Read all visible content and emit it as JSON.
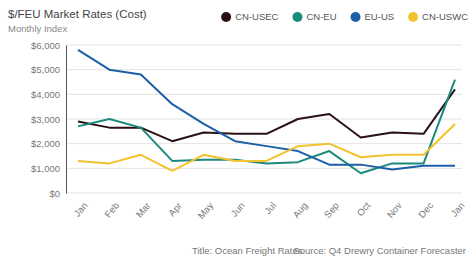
{
  "chart_data": {
    "type": "line",
    "title": "$/FEU Market Rates (Cost)",
    "subtitle": "Monthly Index",
    "annotations": [
      "Title: Ocean Freight Rates",
      "Source: Q4 Drewry Container Forecaster"
    ],
    "categories": [
      "Jan",
      "Feb",
      "Mar",
      "Apr",
      "May",
      "Jun",
      "Jul",
      "Aug",
      "Sep",
      "Oct",
      "Nov",
      "Dec",
      "Jan"
    ],
    "series": [
      {
        "name": "CN-USEC",
        "color": "#2a1114",
        "values": [
          2900,
          2650,
          2650,
          2100,
          2450,
          2400,
          2400,
          3000,
          3200,
          2250,
          2450,
          2400,
          4200
        ]
      },
      {
        "name": "CN-EU",
        "color": "#1b8a7c",
        "values": [
          2700,
          3000,
          2650,
          1300,
          1350,
          1350,
          1200,
          1250,
          1700,
          800,
          1200,
          1200,
          4600
        ]
      },
      {
        "name": "EU-US",
        "color": "#1c5fa6",
        "values": [
          5800,
          5000,
          4800,
          3600,
          2800,
          2100,
          1900,
          1700,
          1150,
          1150,
          950,
          1100,
          1100
        ]
      },
      {
        "name": "CN-USWC",
        "color": "#f3c22f",
        "values": [
          1300,
          1200,
          1550,
          900,
          1550,
          1300,
          1300,
          1900,
          2000,
          1450,
          1550,
          1550,
          2800
        ]
      }
    ],
    "ylim": [
      0,
      6000
    ],
    "yticks": [
      {
        "value": 0,
        "label": "$0"
      },
      {
        "value": 1000,
        "label": "$1,000"
      },
      {
        "value": 2000,
        "label": "$2,000"
      },
      {
        "value": 3000,
        "label": "$3,000"
      },
      {
        "value": 4000,
        "label": "$4,000"
      },
      {
        "value": 5000,
        "label": "$5,000"
      },
      {
        "value": 6000,
        "label": "$6,000"
      }
    ],
    "grid": true,
    "legend": "top-right"
  }
}
